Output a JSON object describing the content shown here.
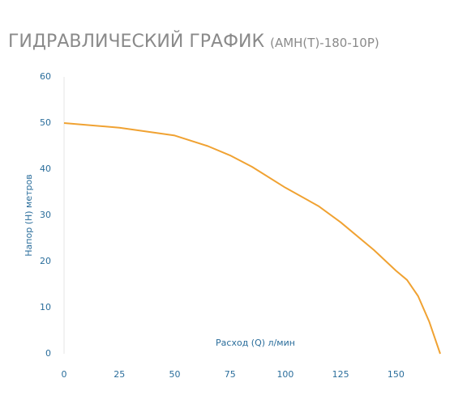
{
  "chart_data": {
    "type": "line",
    "title": "ГИДРАВЛИЧЕСКИЙ ГРАФИК",
    "subtitle": "(АМН(Т)-180-10Р)",
    "x_label": "Расход (Q) л/мин",
    "y_label": "Напор (Н) метров",
    "x": [
      0,
      25,
      50,
      65,
      75,
      85,
      100,
      115,
      125,
      140,
      150,
      155,
      160,
      165,
      170
    ],
    "values": [
      50,
      49,
      47.3,
      45,
      43,
      40.5,
      36,
      32,
      28.5,
      22.5,
      18,
      16,
      12.5,
      7,
      0
    ],
    "color": "#f0a232",
    "xlim": [
      0,
      170
    ],
    "xticks": [
      0,
      25,
      50,
      75,
      100,
      125,
      150
    ],
    "ylim": [
      0,
      60
    ],
    "yticks": [
      0,
      10,
      20,
      30,
      40,
      50,
      60
    ],
    "grid": false
  }
}
